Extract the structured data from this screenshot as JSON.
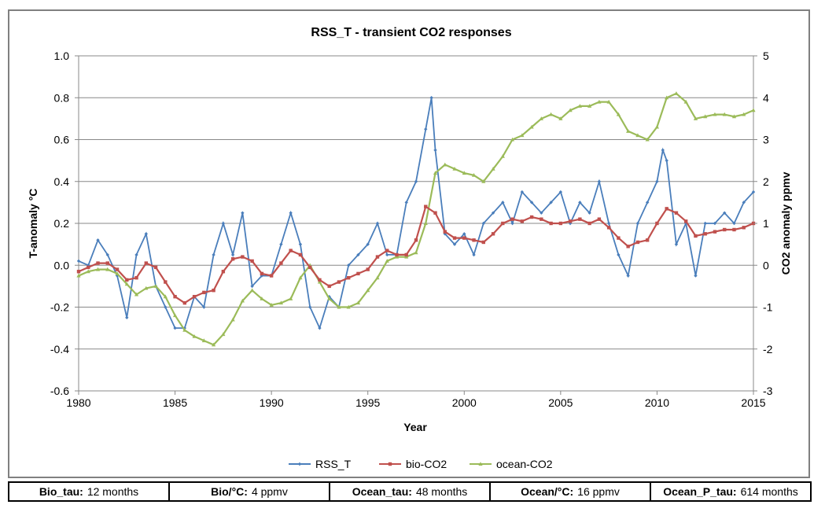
{
  "params": [
    {
      "key": "Bio_tau:",
      "value": "12 months"
    },
    {
      "key": "Bio/°C:",
      "value": "4 ppmv"
    },
    {
      "key": "Ocean_tau:",
      "value": "48 months"
    },
    {
      "key": "Ocean/°C:",
      "value": "16 ppmv"
    },
    {
      "key": "Ocean_P_tau:",
      "value": "614 months"
    }
  ],
  "chart_data": {
    "type": "line",
    "title": "RSS_T - transient CO2 responses",
    "xlabel": "Year",
    "ylabel": "T-anomaly °C",
    "y2label": "CO2 anomaly ppmv",
    "xlim": [
      1980,
      2015
    ],
    "ylim": [
      -0.6,
      1.0
    ],
    "y2lim": [
      -3,
      5
    ],
    "x_ticks": [
      "1980",
      "1985",
      "1990",
      "1995",
      "2000",
      "2005",
      "2010",
      "2015"
    ],
    "y_ticks": [
      "1.0",
      "0.8",
      "0.6",
      "0.4",
      "0.2",
      "0.0",
      "-0.2",
      "-0.4",
      "-0.6"
    ],
    "y2_ticks": [
      "5",
      "4",
      "3",
      "2",
      "1",
      "0",
      "-1",
      "-2",
      "-3"
    ],
    "grid": true,
    "legend_position": "bottom",
    "series": [
      {
        "name": "RSS_T",
        "axis": "left",
        "color": "#4a7ebb",
        "marker": "small diamond",
        "x": [
          1980.0,
          1980.5,
          1981.0,
          1981.5,
          1982.0,
          1982.5,
          1983.0,
          1983.5,
          1984.0,
          1984.5,
          1985.0,
          1985.5,
          1986.0,
          1986.5,
          1987.0,
          1987.5,
          1988.0,
          1988.5,
          1989.0,
          1989.5,
          1990.0,
          1990.5,
          1991.0,
          1991.5,
          1992.0,
          1992.5,
          1993.0,
          1993.5,
          1994.0,
          1994.5,
          1995.0,
          1995.5,
          1996.0,
          1996.5,
          1997.0,
          1997.5,
          1998.0,
          1998.3,
          1998.5,
          1999.0,
          1999.5,
          2000.0,
          2000.5,
          2001.0,
          2001.5,
          2002.0,
          2002.5,
          2003.0,
          2003.5,
          2004.0,
          2004.5,
          2005.0,
          2005.5,
          2006.0,
          2006.5,
          2007.0,
          2007.5,
          2008.0,
          2008.5,
          2009.0,
          2009.5,
          2010.0,
          2010.3,
          2010.5,
          2011.0,
          2011.5,
          2012.0,
          2012.5,
          2013.0,
          2013.5,
          2014.0,
          2014.5,
          2015.0
        ],
        "y": [
          0.02,
          0.0,
          0.12,
          0.05,
          -0.05,
          -0.25,
          0.05,
          0.15,
          -0.1,
          -0.2,
          -0.3,
          -0.3,
          -0.15,
          -0.2,
          0.05,
          0.2,
          0.05,
          0.25,
          -0.1,
          -0.05,
          -0.05,
          0.1,
          0.25,
          0.1,
          -0.2,
          -0.3,
          -0.15,
          -0.2,
          0.0,
          0.05,
          0.1,
          0.2,
          0.05,
          0.05,
          0.3,
          0.4,
          0.65,
          0.8,
          0.55,
          0.15,
          0.1,
          0.15,
          0.05,
          0.2,
          0.25,
          0.3,
          0.2,
          0.35,
          0.3,
          0.25,
          0.3,
          0.35,
          0.2,
          0.3,
          0.25,
          0.4,
          0.2,
          0.05,
          -0.05,
          0.2,
          0.3,
          0.4,
          0.55,
          0.5,
          0.1,
          0.2,
          -0.05,
          0.2,
          0.2,
          0.25,
          0.2,
          0.3,
          0.35
        ]
      },
      {
        "name": "bio-CO2",
        "axis": "left",
        "color": "#c0504d",
        "marker": "square",
        "x": [
          1980.0,
          1980.5,
          1981.0,
          1981.5,
          1982.0,
          1982.5,
          1983.0,
          1983.5,
          1984.0,
          1984.5,
          1985.0,
          1985.5,
          1986.0,
          1986.5,
          1987.0,
          1987.5,
          1988.0,
          1988.5,
          1989.0,
          1989.5,
          1990.0,
          1990.5,
          1991.0,
          1991.5,
          1992.0,
          1992.5,
          1993.0,
          1993.5,
          1994.0,
          1994.5,
          1995.0,
          1995.5,
          1996.0,
          1996.5,
          1997.0,
          1997.5,
          1998.0,
          1998.5,
          1999.0,
          1999.5,
          2000.0,
          2000.5,
          2001.0,
          2001.5,
          2002.0,
          2002.5,
          2003.0,
          2003.5,
          2004.0,
          2004.5,
          2005.0,
          2005.5,
          2006.0,
          2006.5,
          2007.0,
          2007.5,
          2008.0,
          2008.5,
          2009.0,
          2009.5,
          2010.0,
          2010.5,
          2011.0,
          2011.5,
          2012.0,
          2012.5,
          2013.0,
          2013.5,
          2014.0,
          2014.5,
          2015.0
        ],
        "y": [
          -0.03,
          -0.01,
          0.01,
          0.01,
          -0.02,
          -0.07,
          -0.06,
          0.01,
          -0.01,
          -0.08,
          -0.15,
          -0.18,
          -0.15,
          -0.13,
          -0.12,
          -0.03,
          0.03,
          0.04,
          0.02,
          -0.04,
          -0.05,
          0.01,
          0.07,
          0.05,
          -0.01,
          -0.07,
          -0.1,
          -0.08,
          -0.06,
          -0.04,
          -0.02,
          0.04,
          0.07,
          0.05,
          0.05,
          0.12,
          0.28,
          0.25,
          0.16,
          0.13,
          0.13,
          0.12,
          0.11,
          0.15,
          0.2,
          0.22,
          0.21,
          0.23,
          0.22,
          0.2,
          0.2,
          0.21,
          0.22,
          0.2,
          0.22,
          0.18,
          0.13,
          0.09,
          0.11,
          0.12,
          0.2,
          0.27,
          0.25,
          0.21,
          0.14,
          0.15,
          0.16,
          0.17,
          0.17,
          0.18,
          0.2
        ]
      },
      {
        "name": "ocean-CO2",
        "axis": "right",
        "color": "#9bbb59",
        "marker": "triangle",
        "x": [
          1980.0,
          1980.5,
          1981.0,
          1981.5,
          1982.0,
          1982.5,
          1983.0,
          1983.5,
          1984.0,
          1984.5,
          1985.0,
          1985.5,
          1986.0,
          1986.5,
          1987.0,
          1987.5,
          1988.0,
          1988.5,
          1989.0,
          1989.5,
          1990.0,
          1990.5,
          1991.0,
          1991.5,
          1992.0,
          1992.5,
          1993.0,
          1993.5,
          1994.0,
          1994.5,
          1995.0,
          1995.5,
          1996.0,
          1996.5,
          1997.0,
          1997.5,
          1998.0,
          1998.5,
          1999.0,
          1999.5,
          2000.0,
          2000.5,
          2001.0,
          2001.5,
          2002.0,
          2002.5,
          2003.0,
          2003.5,
          2004.0,
          2004.5,
          2005.0,
          2005.5,
          2006.0,
          2006.5,
          2007.0,
          2007.5,
          2008.0,
          2008.5,
          2009.0,
          2009.5,
          2010.0,
          2010.5,
          2011.0,
          2011.5,
          2012.0,
          2012.5,
          2013.0,
          2013.5,
          2014.0,
          2014.5,
          2015.0
        ],
        "y": [
          -0.25,
          -0.15,
          -0.1,
          -0.1,
          -0.2,
          -0.45,
          -0.7,
          -0.55,
          -0.5,
          -0.75,
          -1.2,
          -1.55,
          -1.7,
          -1.8,
          -1.9,
          -1.65,
          -1.3,
          -0.85,
          -0.6,
          -0.8,
          -0.95,
          -0.9,
          -0.8,
          -0.3,
          0.0,
          -0.4,
          -0.8,
          -1.0,
          -1.0,
          -0.9,
          -0.6,
          -0.3,
          0.1,
          0.2,
          0.2,
          0.3,
          1.0,
          2.2,
          2.4,
          2.3,
          2.2,
          2.15,
          2.0,
          2.3,
          2.6,
          3.0,
          3.1,
          3.3,
          3.5,
          3.6,
          3.5,
          3.7,
          3.8,
          3.8,
          3.9,
          3.9,
          3.6,
          3.2,
          3.1,
          3.0,
          3.3,
          4.0,
          4.1,
          3.9,
          3.5,
          3.55,
          3.6,
          3.6,
          3.55,
          3.6,
          3.7
        ]
      }
    ]
  }
}
